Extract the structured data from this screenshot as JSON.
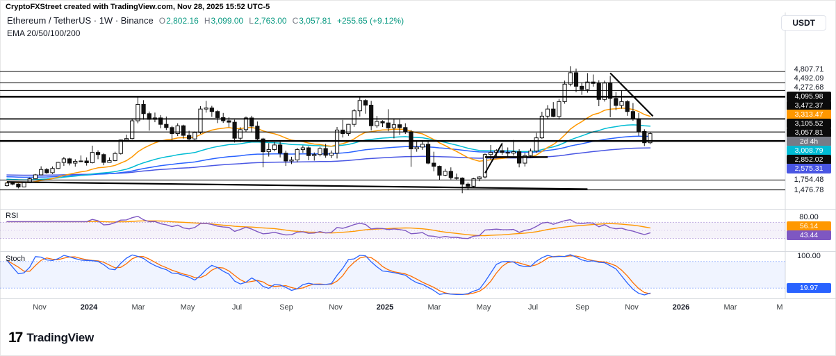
{
  "watermark": "CryptoFXStreet created with TradingView.com, Nov 28, 2025 15:52 UTC-5",
  "header": {
    "title": "Ethereum / TetherUS · 1W · Binance",
    "ohlc": [
      {
        "label": "O",
        "value": "2,802.16"
      },
      {
        "label": "H",
        "value": "3,099.00"
      },
      {
        "label": "L",
        "value": "2,763.00"
      },
      {
        "label": "C",
        "value": "3,057.81"
      }
    ],
    "change": "+255.65 (+9.12%)",
    "indicator_legend": "EMA 20/50/100/200"
  },
  "toolbar": {
    "currency_button": "USDT"
  },
  "price_scale": {
    "labels": [
      {
        "text": "4,807.71",
        "price": 4807.71,
        "type": "grid"
      },
      {
        "text": "4,492.09",
        "price": 4492.09,
        "type": "grid"
      },
      {
        "text": "4,272.68",
        "price": 4272.68,
        "type": "grid"
      },
      {
        "text": "4,095.98",
        "price": 4095.98,
        "type": "level"
      },
      {
        "text": "3,472.37",
        "price": 3472.37,
        "type": "level"
      },
      {
        "text": "3,313.47",
        "price": 3313.47,
        "type": "ema20"
      },
      {
        "text": "3,105.52",
        "price": 3105.52,
        "type": "level"
      },
      {
        "text": "3,057.81",
        "price": 3057.81,
        "type": "last"
      },
      {
        "text": "2d 4h",
        "price": 3057.81,
        "type": "countdown"
      },
      {
        "text": "3,008.79",
        "price": 3008.79,
        "type": "ema50"
      },
      {
        "text": "2,852.02",
        "price": 2852.02,
        "type": "level"
      },
      {
        "text": "2,575.31",
        "price": 2575.31,
        "type": "ema200"
      },
      {
        "text": "1,754.48",
        "price": 1754.48,
        "type": "grid"
      },
      {
        "text": "1,476.78",
        "price": 1476.78,
        "type": "grid"
      }
    ]
  },
  "panes": {
    "rsi": {
      "name": "RSI",
      "grid_value": "80.00",
      "ma_value": "56.14",
      "line_value": "43.44"
    },
    "stoch": {
      "name": "Stoch",
      "grid_value": "100.00",
      "line_value": "19.97"
    }
  },
  "time_axis": {
    "labels": [
      {
        "text": "Nov",
        "m": 0,
        "bold": false
      },
      {
        "text": "2024",
        "m": 2,
        "bold": true
      },
      {
        "text": "Mar",
        "m": 4,
        "bold": false
      },
      {
        "text": "May",
        "m": 6,
        "bold": false
      },
      {
        "text": "Jul",
        "m": 8,
        "bold": false
      },
      {
        "text": "Sep",
        "m": 10,
        "bold": false
      },
      {
        "text": "Nov",
        "m": 12,
        "bold": false
      },
      {
        "text": "2025",
        "m": 14,
        "bold": true
      },
      {
        "text": "Mar",
        "m": 16,
        "bold": false
      },
      {
        "text": "May",
        "m": 18,
        "bold": false
      },
      {
        "text": "Jul",
        "m": 20,
        "bold": false
      },
      {
        "text": "Sep",
        "m": 22,
        "bold": false
      },
      {
        "text": "Nov",
        "m": 24,
        "bold": false
      },
      {
        "text": "2026",
        "m": 26,
        "bold": true
      },
      {
        "text": "Mar",
        "m": 28,
        "bold": false
      },
      {
        "text": "M",
        "m": 30,
        "bold": false
      }
    ]
  },
  "logo": {
    "mark": "17",
    "text": "TradingView"
  },
  "chart_data": {
    "type": "candlestick",
    "title": "Ethereum / TetherUS Weekly (Binance)",
    "symbol": "ETHUSDT",
    "interval": "1W",
    "first_candle_date": "2023-09-25",
    "last_candle": {
      "open": 2802.16,
      "high": 3099.0,
      "low": 2763.0,
      "close": 3057.81,
      "change": "+255.65 (+9.12%)"
    },
    "price_axis_visible_range": [
      1060,
      5600
    ],
    "colors": {
      "up": "#ffffff",
      "down": "#111111",
      "wick": "#111111",
      "ema20": "#ff9800",
      "ema50": "#00bcd4",
      "ema100": "#2962ff",
      "ema200": "#4956e3",
      "rsi": "#7e57c2",
      "rsi_ma": "#ff9800",
      "stoch_k": "#2962ff",
      "stoch_d": "#ff6d00",
      "level": "#000000",
      "label_dark_bg": "#0b0b0b",
      "countdown_bg": "#787b86",
      "green": "#089981",
      "grid": "#d6d9de",
      "rsi_band_fill": "rgba(126,87,194,0.08)",
      "rsi_band_line": "rgba(126,87,194,0.45)",
      "stoch_band_fill": "rgba(41,98,255,0.07)",
      "stoch_band_line": "rgba(41,98,255,0.40)"
    },
    "candles": [
      [
        1595,
        1690,
        1575,
        1670
      ],
      [
        1670,
        1700,
        1605,
        1640
      ],
      [
        1640,
        1660,
        1520,
        1560
      ],
      [
        1560,
        1700,
        1550,
        1680
      ],
      [
        1680,
        1820,
        1665,
        1790
      ],
      [
        1790,
        1925,
        1780,
        1900
      ],
      [
        1900,
        2140,
        1890,
        2050
      ],
      [
        2050,
        2090,
        1930,
        1960
      ],
      [
        1960,
        2135,
        1925,
        2080
      ],
      [
        2080,
        2270,
        2060,
        2250
      ],
      [
        2250,
        2405,
        2150,
        2350
      ],
      [
        2350,
        2380,
        2165,
        2230
      ],
      [
        2230,
        2340,
        2130,
        2280
      ],
      [
        2280,
        2445,
        2255,
        2290
      ],
      [
        2290,
        2390,
        2160,
        2240
      ],
      [
        2240,
        2720,
        2220,
        2530
      ],
      [
        2530,
        2590,
        2340,
        2470
      ],
      [
        2470,
        2510,
        2170,
        2250
      ],
      [
        2250,
        2390,
        2240,
        2300
      ],
      [
        2300,
        2550,
        2280,
        2500
      ],
      [
        2500,
        2890,
        2470,
        2880
      ],
      [
        2880,
        3030,
        2850,
        2920
      ],
      [
        2920,
        3490,
        2900,
        3420
      ],
      [
        3420,
        4093,
        3350,
        3880
      ],
      [
        3880,
        4000,
        3450,
        3620
      ],
      [
        3620,
        3680,
        3142,
        3460
      ],
      [
        3460,
        3650,
        3380,
        3500
      ],
      [
        3500,
        3580,
        3210,
        3320
      ],
      [
        3320,
        3540,
        3160,
        3230
      ],
      [
        3230,
        3280,
        2850,
        3060
      ],
      [
        3060,
        3350,
        2990,
        3280
      ],
      [
        3280,
        3310,
        2920,
        3010
      ],
      [
        3010,
        3140,
        2860,
        2910
      ],
      [
        2910,
        3120,
        2880,
        3090
      ],
      [
        3090,
        3830,
        3050,
        3750
      ],
      [
        3750,
        3980,
        3650,
        3780
      ],
      [
        3780,
        3840,
        3530,
        3680
      ],
      [
        3680,
        3720,
        3355,
        3510
      ],
      [
        3510,
        3640,
        3360,
        3420
      ],
      [
        3420,
        3520,
        3240,
        3380
      ],
      [
        3380,
        3450,
        2810,
        2930
      ],
      [
        2930,
        3240,
        2820,
        3170
      ],
      [
        3170,
        3540,
        3100,
        3500
      ],
      [
        3500,
        3560,
        3090,
        3270
      ],
      [
        3270,
        3400,
        2850,
        2910
      ],
      [
        2910,
        2940,
        2111,
        2550
      ],
      [
        2550,
        2790,
        2415,
        2610
      ],
      [
        2610,
        2820,
        2560,
        2740
      ],
      [
        2740,
        2825,
        2390,
        2510
      ],
      [
        2510,
        2580,
        2150,
        2290
      ],
      [
        2290,
        2410,
        2205,
        2320
      ],
      [
        2320,
        2660,
        2250,
        2610
      ],
      [
        2610,
        2725,
        2520,
        2660
      ],
      [
        2660,
        2700,
        2310,
        2440
      ],
      [
        2440,
        2530,
        2300,
        2470
      ],
      [
        2470,
        2690,
        2420,
        2640
      ],
      [
        2640,
        2770,
        2380,
        2450
      ],
      [
        2450,
        2585,
        2370,
        2510
      ],
      [
        2510,
        3245,
        2360,
        3160
      ],
      [
        3160,
        3445,
        2950,
        3060
      ],
      [
        3060,
        3330,
        2995,
        3320
      ],
      [
        3320,
        3750,
        3250,
        3700
      ],
      [
        3700,
        4100,
        3540,
        3990
      ],
      [
        3990,
        4025,
        3620,
        3860
      ],
      [
        3860,
        3980,
        3150,
        3280
      ],
      [
        3280,
        3555,
        3220,
        3400
      ],
      [
        3400,
        3435,
        3245,
        3360
      ],
      [
        3360,
        3745,
        3125,
        3220
      ],
      [
        3220,
        3475,
        2925,
        3310
      ],
      [
        3310,
        3453,
        3025,
        3230
      ],
      [
        3230,
        3350,
        3050,
        3110
      ],
      [
        3110,
        3165,
        2125,
        2630
      ],
      [
        2630,
        2860,
        2550,
        2680
      ],
      [
        2680,
        2850,
        2605,
        2760
      ],
      [
        2760,
        2835,
        2200,
        2230
      ],
      [
        2230,
        2550,
        2000,
        2140
      ],
      [
        2140,
        2160,
        1760,
        1890
      ],
      [
        1890,
        2070,
        1860,
        2000
      ],
      [
        2000,
        2110,
        1770,
        1820
      ],
      [
        1820,
        1935,
        1750,
        1810
      ],
      [
        1810,
        1830,
        1385,
        1640
      ],
      [
        1640,
        1690,
        1470,
        1580
      ],
      [
        1580,
        1815,
        1540,
        1790
      ],
      [
        1790,
        1860,
        1720,
        1840
      ],
      [
        1840,
        2500,
        1800,
        2470
      ],
      [
        2470,
        2740,
        2330,
        2530
      ],
      [
        2530,
        2620,
        2400,
        2580
      ],
      [
        2580,
        2800,
        2460,
        2530
      ],
      [
        2530,
        2670,
        2390,
        2510
      ],
      [
        2510,
        2880,
        2440,
        2550
      ],
      [
        2550,
        2620,
        2110,
        2230
      ],
      [
        2230,
        2520,
        2135,
        2440
      ],
      [
        2440,
        2640,
        2370,
        2570
      ],
      [
        2570,
        3080,
        2520,
        2940
      ],
      [
        2940,
        3675,
        2910,
        3550
      ],
      [
        3550,
        3860,
        3470,
        3750
      ],
      [
        3750,
        3945,
        3520,
        3540
      ],
      [
        3540,
        4035,
        3455,
        3960
      ],
      [
        3960,
        4550,
        3900,
        4450
      ],
      [
        4450,
        4955,
        4390,
        4770
      ],
      [
        4770,
        4890,
        4220,
        4390
      ],
      [
        4390,
        4490,
        4150,
        4300
      ],
      [
        4300,
        4760,
        4210,
        4510
      ],
      [
        4510,
        4720,
        4380,
        4470
      ],
      [
        4470,
        4560,
        3830,
        4020
      ],
      [
        4020,
        4550,
        3960,
        4480
      ],
      [
        4480,
        4680,
        3520,
        4050
      ],
      [
        4050,
        4230,
        3720,
        3850
      ],
      [
        3850,
        4270,
        3760,
        3960
      ],
      [
        3960,
        4000,
        3560,
        3680
      ],
      [
        3680,
        3920,
        3420,
        3480
      ],
      [
        3480,
        3640,
        3000,
        3120
      ],
      [
        3120,
        3180,
        2710,
        2802.16
      ],
      [
        2802.16,
        3099,
        2763,
        3057.81
      ]
    ],
    "levels": [
      {
        "price": 4807.71,
        "lw": 1
      },
      {
        "price": 4492.09,
        "lw": 1
      },
      {
        "price": 4272.68,
        "lw": 1
      },
      {
        "price": 4095.98,
        "lw": 2.5
      },
      {
        "price": 3472.37,
        "lw": 1.8
      },
      {
        "price": 3105.52,
        "lw": 1.2
      },
      {
        "price": 2852.02,
        "lw": 2.5
      },
      {
        "price": 1754.48,
        "lw": 1
      },
      {
        "price": 1476.78,
        "lw": 1
      }
    ],
    "trendlines": [
      {
        "w1": 0,
        "p1": 1700,
        "w2": 102,
        "p2": 1500,
        "lw": 2.2
      },
      {
        "w1": 106,
        "p1": 4760,
        "w2": 113.5,
        "p2": 3550,
        "lw": 2.2
      },
      {
        "w1": 84,
        "p1": 1950,
        "w2": 87,
        "p2": 2780,
        "lw": 2
      },
      {
        "w1": 84,
        "p1": 2400,
        "w2": 95,
        "p2": 2400,
        "lw": 2.5
      }
    ],
    "emas": [
      {
        "period": 20,
        "seed": 1700,
        "color_key": "ema20",
        "last_label": 3313.47
      },
      {
        "period": 50,
        "seed": 1780,
        "color_key": "ema50",
        "last_label": 3008.79
      },
      {
        "period": 100,
        "seed": 1850,
        "color_key": "ema100",
        "last_label": null
      },
      {
        "period": 200,
        "seed": 1900,
        "color_key": "ema200",
        "last_label": 2575.31
      }
    ],
    "indicators": {
      "rsi": {
        "period": 14,
        "current": 43.44,
        "ma_current": 56.14,
        "upper_band": 70,
        "lower_band": 30,
        "grid": 80
      },
      "stoch": {
        "period": 14,
        "k_current": 19.97,
        "upper_band": 80,
        "lower_band": 20,
        "grid": 100
      }
    }
  }
}
